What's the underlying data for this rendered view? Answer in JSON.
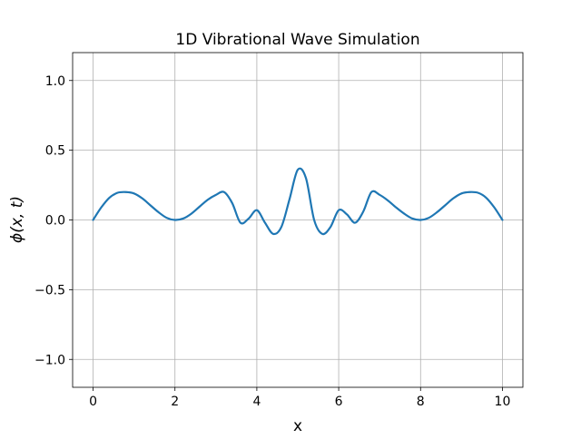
{
  "chart_data": {
    "type": "line",
    "title": "1D Vibrational Wave Simulation",
    "xlabel": "x",
    "ylabel": "ϕ(x, t)",
    "xlim": [
      -0.5,
      10.5
    ],
    "ylim": [
      -1.2,
      1.2
    ],
    "x_ticks": [
      0,
      2,
      4,
      6,
      8,
      10
    ],
    "x_tick_labels": [
      "0",
      "2",
      "4",
      "6",
      "8",
      "10"
    ],
    "y_ticks": [
      -1.0,
      -0.5,
      0.0,
      0.5,
      1.0
    ],
    "y_tick_labels": [
      "−1.0",
      "−0.5",
      "0.0",
      "0.5",
      "1.0"
    ],
    "grid": true,
    "colors": {
      "line": "#1f77b4",
      "grid": "#b0b0b0",
      "axes": "#000000"
    },
    "series": [
      {
        "x": [
          0.0,
          0.2,
          0.4,
          0.6,
          0.8,
          1.0,
          1.2,
          1.4,
          1.6,
          1.8,
          2.0,
          2.2,
          2.4,
          2.6,
          2.8,
          3.0,
          3.2,
          3.4,
          3.6,
          3.8,
          4.0,
          4.2,
          4.4,
          4.6,
          4.8,
          5.0,
          5.2,
          5.4,
          5.6,
          5.8,
          6.0,
          6.2,
          6.4,
          6.6,
          6.8,
          7.0,
          7.2,
          7.4,
          7.6,
          7.8,
          8.0,
          8.2,
          8.4,
          8.6,
          8.8,
          9.0,
          9.2,
          9.4,
          9.6,
          9.8,
          10.0
        ],
        "y": [
          0.0,
          0.09,
          0.16,
          0.195,
          0.2,
          0.19,
          0.155,
          0.105,
          0.055,
          0.015,
          0.0,
          0.01,
          0.045,
          0.095,
          0.145,
          0.18,
          0.2,
          0.12,
          -0.02,
          0.01,
          0.07,
          -0.02,
          -0.1,
          -0.05,
          0.15,
          0.36,
          0.3,
          0.0,
          -0.1,
          -0.05,
          0.07,
          0.04,
          -0.02,
          0.06,
          0.2,
          0.18,
          0.14,
          0.09,
          0.045,
          0.01,
          0.0,
          0.015,
          0.055,
          0.105,
          0.155,
          0.19,
          0.2,
          0.195,
          0.16,
          0.09,
          0.0
        ]
      }
    ]
  }
}
